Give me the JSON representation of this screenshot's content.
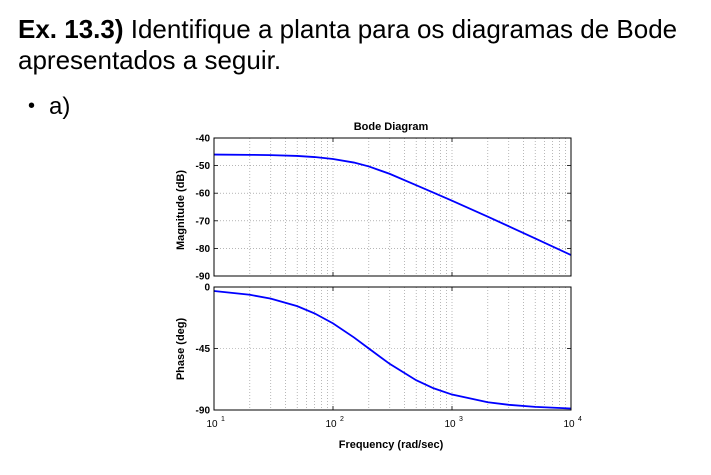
{
  "exercise": {
    "number_label": "Ex. 13.3)",
    "instruction": " Identifique a planta para os diagramas de Bode apresentados a seguir."
  },
  "bullet": {
    "symbol": "•",
    "label": "a)"
  },
  "chart_data": {
    "type": "line",
    "title": "Bode Diagram",
    "xlabel": "Frequency  (rad/sec)",
    "x_scale": "log",
    "xlim": [
      10,
      10000
    ],
    "x_ticks": [
      {
        "value": 10,
        "base": "10",
        "exp": "1"
      },
      {
        "value": 100,
        "base": "10",
        "exp": "2"
      },
      {
        "value": 1000,
        "base": "10",
        "exp": "3"
      },
      {
        "value": 10000,
        "base": "10",
        "exp": "4"
      }
    ],
    "grid": true,
    "line_color": "#0000ff",
    "panels": [
      {
        "name": "magnitude",
        "ylabel": "Magnitude (dB)",
        "ylim": [
          -90,
          -40
        ],
        "y_ticks": [
          "-40",
          "-50",
          "-60",
          "-70",
          "-80",
          "-90"
        ],
        "series": [
          {
            "x": [
              10,
              20,
              30,
              50,
              70,
              100,
              150,
              200,
              300,
              500,
              700,
              1000,
              2000,
              3000,
              5000,
              10000
            ],
            "y": [
              -46,
              -46.1,
              -46.2,
              -46.5,
              -46.9,
              -47.6,
              -48.9,
              -50.3,
              -53,
              -57.1,
              -59.8,
              -62.7,
              -68.5,
              -72,
              -76.4,
              -82.4
            ]
          }
        ]
      },
      {
        "name": "phase",
        "ylabel": "Phase (deg)",
        "ylim": [
          -90,
          0
        ],
        "y_ticks": [
          "0",
          "-45",
          "-90"
        ],
        "series": [
          {
            "x": [
              10,
              20,
              30,
              50,
              70,
              100,
              150,
              200,
              300,
              500,
              700,
              1000,
              2000,
              3000,
              5000,
              10000
            ],
            "y": [
              -2.9,
              -5.7,
              -8.5,
              -14,
              -19.3,
              -26.6,
              -36.9,
              -45,
              -56.3,
              -68.2,
              -74.1,
              -78.7,
              -84.3,
              -86.2,
              -87.7,
              -88.9
            ]
          }
        ]
      }
    ]
  }
}
